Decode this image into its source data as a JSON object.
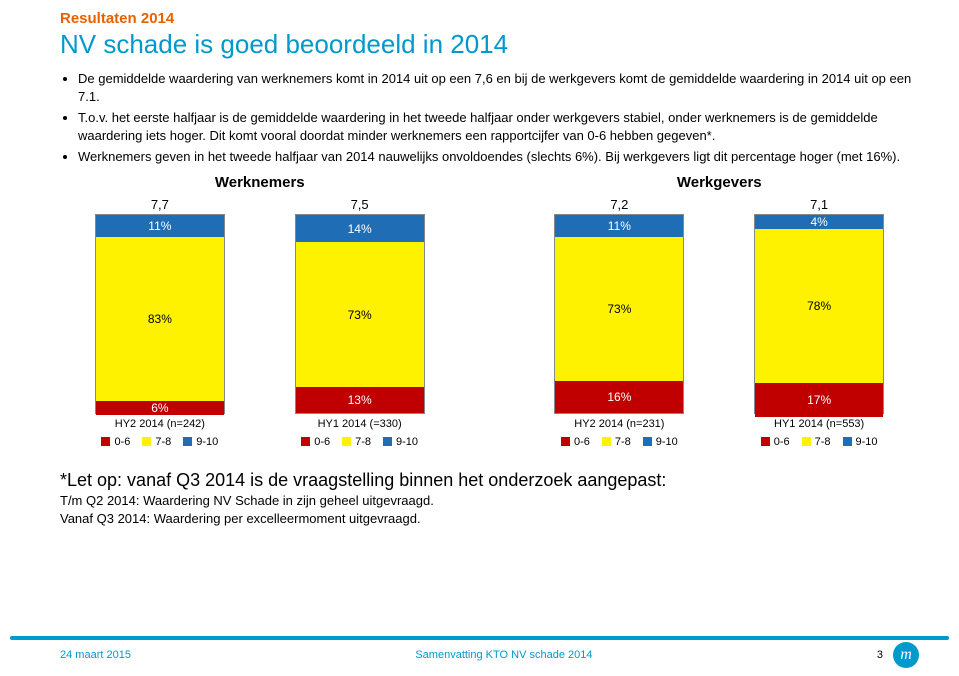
{
  "colors": {
    "accent": "#0099cc",
    "brand": "#e86100",
    "seg_top": "#1f6db5",
    "seg_mid": "#fef200",
    "seg_bot": "#c00000",
    "footer_line": "#0099cc",
    "logo_bg": "#0099cc"
  },
  "pretitle": "Resultaten 2014",
  "title": "NV schade is goed beoordeeld in 2014",
  "bullets": [
    "De gemiddelde waardering van werknemers komt in 2014 uit op een 7,6 en bij de werkgevers komt de gemiddelde waardering in 2014 uit op een 7.1.",
    "T.o.v. het eerste halfjaar is de gemiddelde waardering in het tweede halfjaar onder werkgevers stabiel, onder werknemers is de gemiddelde waardering iets hoger. Dit komt vooral doordat minder werknemers een rapportcijfer van 0-6 hebben gegeven*.",
    "Werknemers geven in het tweede halfjaar van 2014 nauwelijks onvoldoendes (slechts 6%). Bij werkgevers ligt dit percentage hoger (met 16%)."
  ],
  "chart_groups": [
    {
      "title": "Werknemers",
      "bars": [
        {
          "value": "7,7",
          "top": "11%",
          "mid": "83%",
          "bot": "6%",
          "top_h": 11,
          "mid_h": 83,
          "bot_h": 6,
          "label": "HY2 2014 (n=242)"
        },
        {
          "value": "7,5",
          "top": "14%",
          "mid": "73%",
          "bot": "13%",
          "top_h": 14,
          "mid_h": 73,
          "bot_h": 13,
          "label": "HY1 2014 (=330)"
        }
      ]
    },
    {
      "title": "Werkgevers",
      "bars": [
        {
          "value": "7,2",
          "top": "11%",
          "mid": "73%",
          "bot": "16%",
          "top_h": 11,
          "mid_h": 73,
          "bot_h": 16,
          "label": "HY2 2014 (n=231)"
        },
        {
          "value": "7,1",
          "top": "4%",
          "mid": "78%",
          "bot": "17%",
          "top_h": 4,
          "mid_h": 78,
          "bot_h": 17,
          "label": "HY1 2014 (n=553)"
        }
      ]
    }
  ],
  "legend": [
    "0-6",
    "7-8",
    "9-10"
  ],
  "footnote": {
    "l1": "*Let op: vanaf Q3 2014 is de vraagstelling binnen het onderzoek aangepast:",
    "l2": "T/m Q2 2014: Waardering NV Schade in zijn geheel uitgevraagd.",
    "l3": "Vanaf Q3 2014: Waardering per excelleermoment uitgevraagd."
  },
  "footer": {
    "date": "24 maart 2015",
    "center": "Samenvatting KTO NV schade 2014",
    "page": "3",
    "logo_text": "m"
  }
}
